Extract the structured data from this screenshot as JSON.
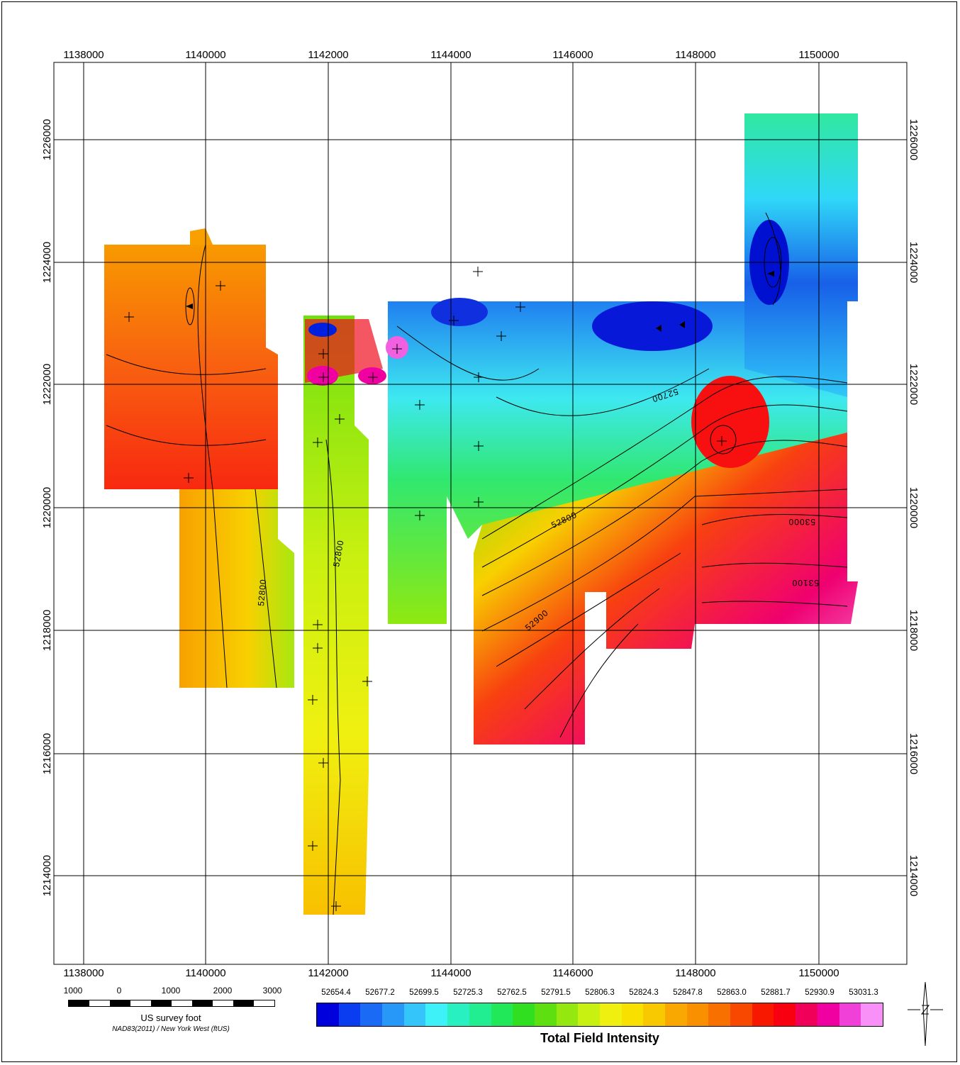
{
  "map": {
    "x_ticks": [
      "1138000",
      "1140000",
      "1142000",
      "1144000",
      "1146000",
      "1148000",
      "1150000"
    ],
    "y_ticks": [
      "1226000",
      "1224000",
      "1222000",
      "1220000",
      "1218000",
      "1216000",
      "1214000"
    ],
    "contour_labels": [
      "52800",
      "52800",
      "52700",
      "52800",
      "52900",
      "53000",
      "53100"
    ]
  },
  "scale_bar": {
    "ticks": [
      "1000",
      "0",
      "1000",
      "2000",
      "3000"
    ],
    "units": "US survey foot",
    "projection": "NAD83(2011) / New York West (ftUS)"
  },
  "legend": {
    "title": "Total Field Intensity",
    "values": [
      "52654.4",
      "52677.2",
      "52699.5",
      "52725.3",
      "52762.5",
      "52791.5",
      "52806.3",
      "52824.3",
      "52847.8",
      "52863.0",
      "52881.7",
      "52930.9",
      "53031.3"
    ],
    "colors": [
      "#0000dd",
      "#0a3cf0",
      "#1a6af5",
      "#2898f8",
      "#34c6fa",
      "#3ef0f8",
      "#28f0c0",
      "#20ee90",
      "#20e858",
      "#30e020",
      "#5ee010",
      "#94e810",
      "#c8f010",
      "#f0f010",
      "#f8e000",
      "#f8c800",
      "#f8a800",
      "#f89000",
      "#f87000",
      "#f84800",
      "#f81800",
      "#f80010",
      "#f00058",
      "#f000a0",
      "#f040d8",
      "#f890f8"
    ]
  }
}
